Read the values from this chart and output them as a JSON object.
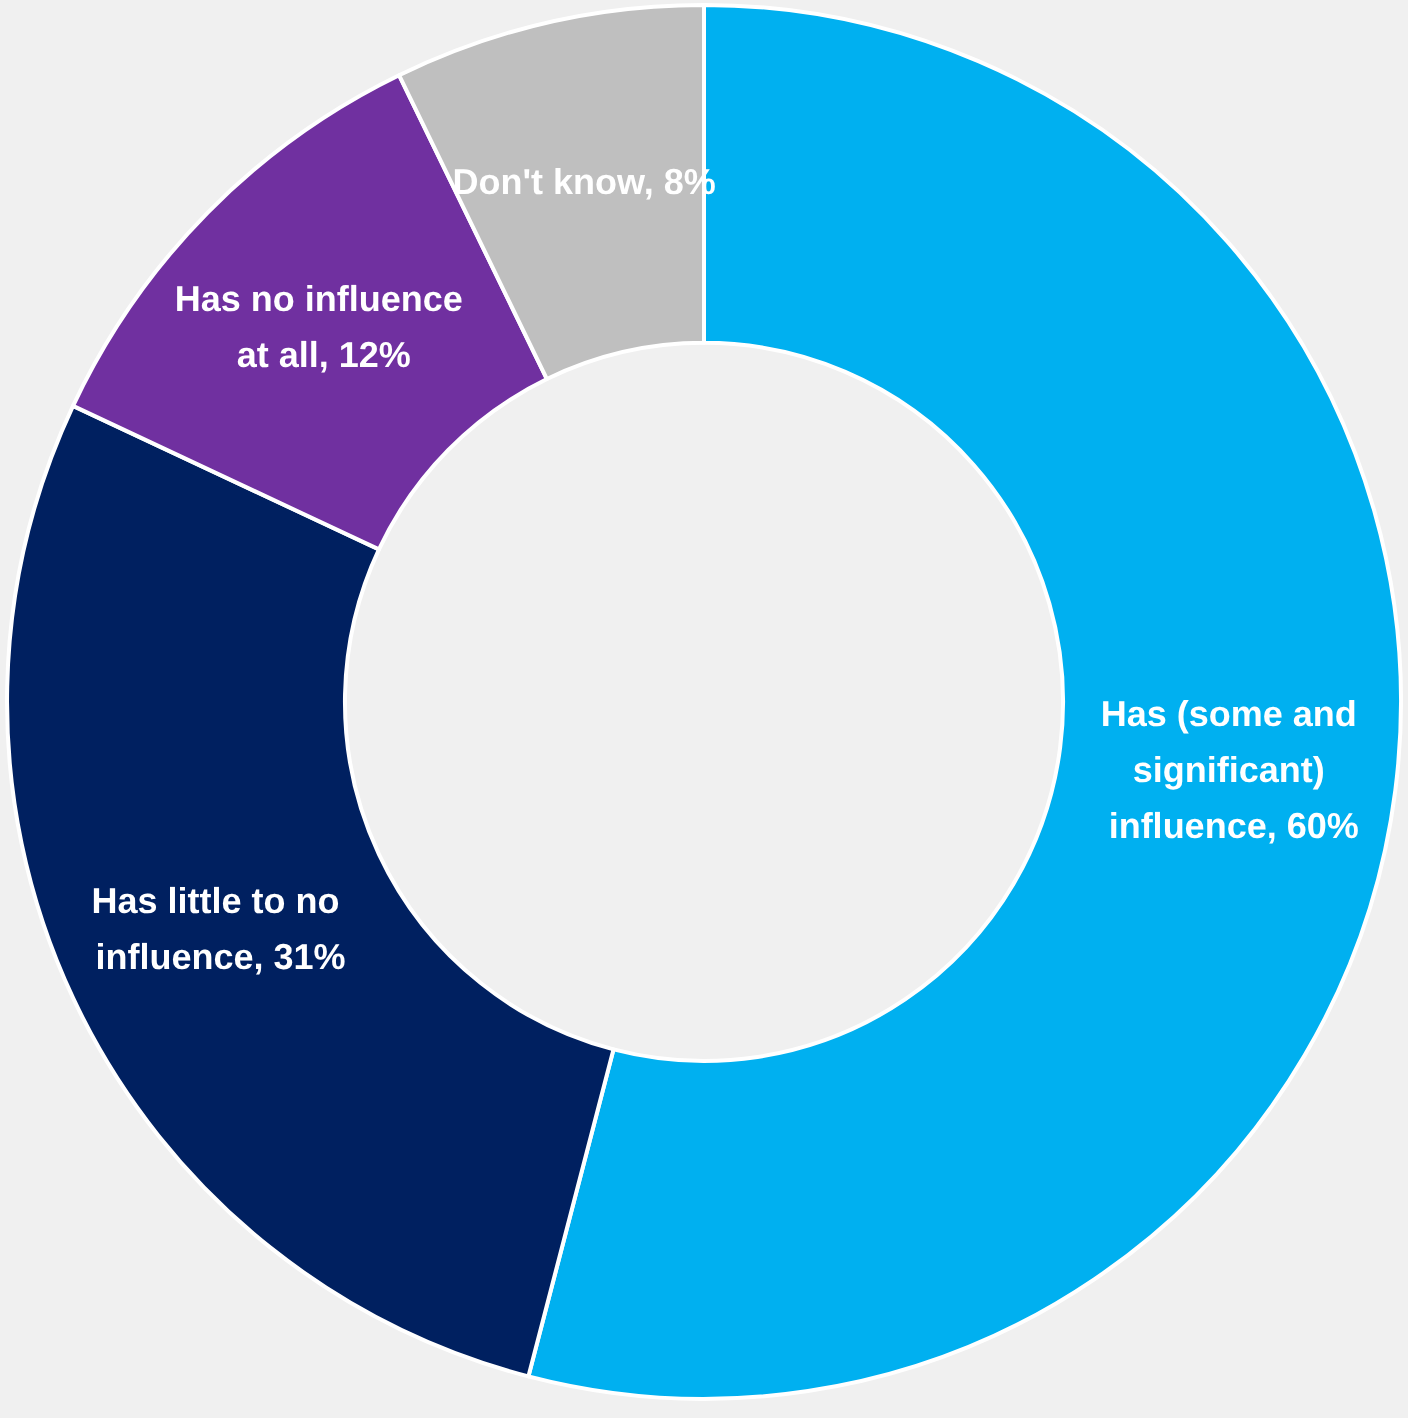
{
  "chart_data": {
    "type": "donut",
    "categories": [
      "Has (some and significant) influence",
      "Has little to no influence",
      "Has no influence at all",
      "Don't know"
    ],
    "values": [
      60,
      31,
      12,
      8
    ],
    "value_labels": [
      "60%",
      "31%",
      "12%",
      "8%"
    ],
    "colors": [
      "#00b0f0",
      "#002060",
      "#7030a0",
      "#bfbfbf"
    ],
    "data_labels": true
  }
}
